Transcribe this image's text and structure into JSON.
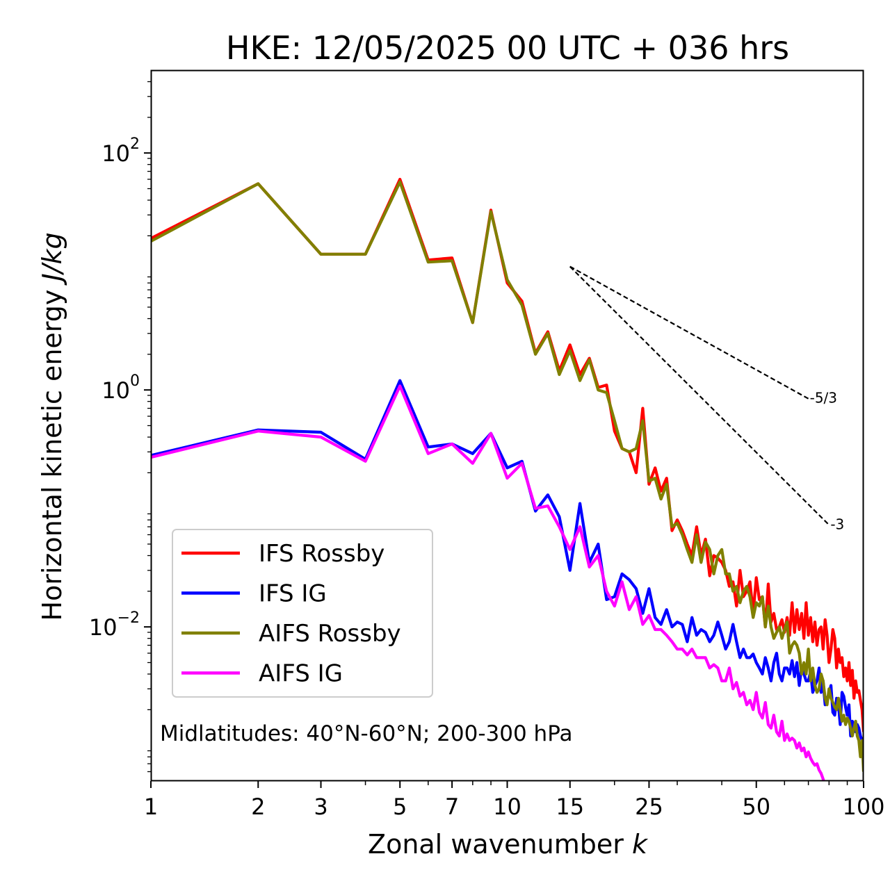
{
  "chart_data": {
    "type": "line",
    "title": "HKE: 12/05/2025 00 UTC + 036 hrs",
    "xlabel": "Zonal wavenumber",
    "xlabel_var": "k",
    "ylabel": "Horizontal kinetic energy",
    "ylabel_unit": "J/kg",
    "x_scale": "log",
    "y_scale": "log",
    "xlim": [
      1,
      100
    ],
    "ylim": [
      0.0005,
      500
    ],
    "xticks": [
      1,
      2,
      3,
      5,
      7,
      10,
      15,
      25,
      50,
      100
    ],
    "xtick_labels": [
      "1",
      "2",
      "3",
      "5",
      "7",
      "10",
      "15",
      "25",
      "50",
      "100"
    ],
    "yticks": [
      {
        "value": 0.01,
        "base": "10",
        "exp": "−2"
      },
      {
        "value": 1,
        "base": "10",
        "exp": "0"
      },
      {
        "value": 100,
        "base": "10",
        "exp": "2"
      }
    ],
    "annotation": "Midlatitudes: 40°N-60°N; 200-300 hPa",
    "legend_position": "lower-left",
    "reference_slopes": [
      {
        "label": "-5/3",
        "slope": -1.6667,
        "x0": 15,
        "y0": 11.0,
        "x1": 70
      },
      {
        "label": "-3",
        "slope": -3,
        "x0": 15,
        "y0": 11.0,
        "x1": 80
      }
    ],
    "series": [
      {
        "name": "IFS Rossby",
        "color": "#ff0000",
        "x": [
          1,
          2,
          3,
          4,
          5,
          6,
          7,
          8,
          9,
          10,
          11,
          12,
          13,
          14,
          15,
          16,
          17,
          18,
          19,
          20,
          21,
          22,
          23,
          24,
          25,
          26,
          27,
          28,
          29,
          30,
          31,
          32,
          33,
          34,
          35,
          36,
          37,
          38,
          39,
          40,
          41,
          42,
          43,
          44,
          45,
          46,
          47,
          48,
          49,
          50,
          51,
          52,
          53,
          54,
          55,
          56,
          57,
          58,
          59,
          60,
          61,
          62,
          63,
          64,
          65,
          66,
          67,
          68,
          69,
          70,
          71,
          72,
          73,
          74,
          75,
          76,
          77,
          78,
          79,
          80,
          81,
          82,
          83,
          84,
          85,
          86,
          87,
          88,
          89,
          90,
          91,
          92,
          93,
          94,
          95,
          96,
          97,
          98,
          99,
          100
        ],
        "y": [
          19.0,
          55.0,
          14.0,
          14.0,
          60.0,
          12.5,
          13.0,
          3.7,
          33.0,
          8.0,
          5.6,
          2.05,
          3.1,
          1.45,
          2.4,
          1.35,
          1.85,
          1.05,
          1.1,
          0.45,
          0.32,
          0.3,
          0.2,
          0.7,
          0.16,
          0.22,
          0.14,
          0.18,
          0.065,
          0.08,
          0.065,
          0.05,
          0.04,
          0.07,
          0.04,
          0.055,
          0.027,
          0.04,
          0.038,
          0.035,
          0.03,
          0.022,
          0.024,
          0.015,
          0.03,
          0.018,
          0.02,
          0.024,
          0.013,
          0.026,
          0.017,
          0.018,
          0.01,
          0.023,
          0.011,
          0.013,
          0.0095,
          0.01,
          0.0115,
          0.009,
          0.012,
          0.0085,
          0.016,
          0.009,
          0.014,
          0.0095,
          0.013,
          0.008,
          0.016,
          0.0085,
          0.012,
          0.0075,
          0.011,
          0.007,
          0.0095,
          0.01,
          0.0065,
          0.0115,
          0.0085,
          0.005,
          0.0065,
          0.0095,
          0.008,
          0.0045,
          0.0065,
          0.005,
          0.0055,
          0.0038,
          0.0045,
          0.0035,
          0.005,
          0.0032,
          0.0043,
          0.0025,
          0.0035,
          0.0028,
          0.0029,
          0.0024,
          0.002,
          0.0013
        ]
      },
      {
        "name": "IFS IG",
        "color": "#0000ff",
        "x": [
          1,
          2,
          3,
          4,
          5,
          6,
          7,
          8,
          9,
          10,
          11,
          12,
          13,
          14,
          15,
          16,
          17,
          18,
          19,
          20,
          21,
          22,
          23,
          24,
          25,
          26,
          27,
          28,
          29,
          30,
          31,
          32,
          33,
          34,
          35,
          36,
          37,
          38,
          39,
          40,
          41,
          42,
          43,
          44,
          45,
          46,
          47,
          48,
          49,
          50,
          51,
          52,
          53,
          54,
          55,
          56,
          57,
          58,
          59,
          60,
          61,
          62,
          63,
          64,
          65,
          66,
          67,
          68,
          69,
          70,
          71,
          72,
          73,
          74,
          75,
          76,
          77,
          78,
          79,
          80,
          81,
          82,
          83,
          84,
          85,
          86,
          87,
          88,
          89,
          90,
          91,
          92,
          93,
          94,
          95,
          96,
          97,
          98,
          99,
          100
        ],
        "y": [
          0.28,
          0.46,
          0.44,
          0.26,
          1.2,
          0.33,
          0.35,
          0.29,
          0.43,
          0.22,
          0.25,
          0.095,
          0.13,
          0.085,
          0.03,
          0.11,
          0.035,
          0.05,
          0.017,
          0.018,
          0.028,
          0.025,
          0.021,
          0.013,
          0.021,
          0.012,
          0.0105,
          0.014,
          0.01,
          0.011,
          0.0105,
          0.0075,
          0.012,
          0.0085,
          0.0095,
          0.009,
          0.0075,
          0.0085,
          0.011,
          0.0085,
          0.0065,
          0.0075,
          0.0105,
          0.0075,
          0.0055,
          0.0065,
          0.0055,
          0.0055,
          0.0059,
          0.005,
          0.0045,
          0.004,
          0.0055,
          0.0045,
          0.0035,
          0.005,
          0.006,
          0.004,
          0.0035,
          0.0045,
          0.0045,
          0.004,
          0.0052,
          0.0038,
          0.005,
          0.0032,
          0.0045,
          0.004,
          0.0035,
          0.0035,
          0.0042,
          0.0028,
          0.0032,
          0.0035,
          0.0045,
          0.0028,
          0.0035,
          0.0022,
          0.0025,
          0.0027,
          0.0032,
          0.0019,
          0.0018,
          0.0025,
          0.0022,
          0.0015,
          0.0028,
          0.0026,
          0.0021,
          0.0018,
          0.0022,
          0.0012,
          0.0016,
          0.0015,
          0.0013,
          0.0015,
          0.0014,
          0.0012,
          0.0011,
          0.001
        ]
      },
      {
        "name": "AIFS Rossby",
        "color": "#808000",
        "x": [
          1,
          2,
          3,
          4,
          5,
          6,
          7,
          8,
          9,
          10,
          11,
          12,
          13,
          14,
          15,
          16,
          17,
          18,
          19,
          20,
          21,
          22,
          23,
          24,
          25,
          26,
          27,
          28,
          29,
          30,
          31,
          32,
          33,
          34,
          35,
          36,
          37,
          38,
          39,
          40,
          41,
          42,
          43,
          44,
          45,
          46,
          47,
          48,
          49,
          50,
          51,
          52,
          53,
          54,
          55,
          56,
          57,
          58,
          59,
          60,
          61,
          62,
          63,
          64,
          65,
          66,
          67,
          68,
          69,
          70,
          71,
          72,
          73,
          74,
          75,
          76,
          77,
          78,
          79,
          80,
          81,
          82,
          83,
          84,
          85,
          86,
          87,
          88,
          89,
          90,
          91,
          92,
          93,
          94,
          95,
          96,
          97,
          98,
          99,
          100
        ],
        "y": [
          18.0,
          55.0,
          14.0,
          14.0,
          57.0,
          12.0,
          12.3,
          3.7,
          32.0,
          8.5,
          5.2,
          2.0,
          3.0,
          1.35,
          2.15,
          1.2,
          1.8,
          1.0,
          0.95,
          0.55,
          0.32,
          0.3,
          0.32,
          0.55,
          0.17,
          0.18,
          0.12,
          0.16,
          0.07,
          0.075,
          0.06,
          0.045,
          0.035,
          0.06,
          0.035,
          0.052,
          0.045,
          0.028,
          0.04,
          0.045,
          0.028,
          0.028,
          0.02,
          0.022,
          0.016,
          0.02,
          0.022,
          0.018,
          0.012,
          0.016,
          0.015,
          0.018,
          0.01,
          0.015,
          0.01,
          0.008,
          0.009,
          0.01,
          0.008,
          0.0095,
          0.011,
          0.006,
          0.007,
          0.0075,
          0.007,
          0.006,
          0.004,
          0.005,
          0.004,
          0.0065,
          0.0035,
          0.0045,
          0.0032,
          0.0028,
          0.003,
          0.004,
          0.0035,
          0.0025,
          0.0022,
          0.003,
          0.0025,
          0.0023,
          0.0021,
          0.002,
          0.0025,
          0.002,
          0.0016,
          0.0018,
          0.0015,
          0.0017,
          0.0016,
          0.0014,
          0.0012,
          0.0014,
          0.0016,
          0.0012,
          0.0011,
          0.0008,
          0.0011,
          0.0006
        ]
      },
      {
        "name": "AIFS IG",
        "color": "#ff00ff",
        "x": [
          1,
          2,
          3,
          4,
          5,
          6,
          7,
          8,
          9,
          10,
          11,
          12,
          13,
          14,
          15,
          16,
          17,
          18,
          19,
          20,
          21,
          22,
          23,
          24,
          25,
          26,
          27,
          28,
          29,
          30,
          31,
          32,
          33,
          34,
          35,
          36,
          37,
          38,
          39,
          40,
          41,
          42,
          43,
          44,
          45,
          46,
          47,
          48,
          49,
          50,
          51,
          52,
          53,
          54,
          55,
          56,
          57,
          58,
          59,
          60,
          61,
          62,
          63,
          64,
          65,
          66,
          67,
          68,
          69,
          70,
          71,
          72,
          73,
          74,
          75,
          76,
          77,
          78
        ],
        "y": [
          0.27,
          0.45,
          0.4,
          0.25,
          1.08,
          0.29,
          0.35,
          0.24,
          0.43,
          0.18,
          0.24,
          0.1,
          0.105,
          0.07,
          0.045,
          0.07,
          0.032,
          0.04,
          0.02,
          0.015,
          0.024,
          0.014,
          0.018,
          0.0105,
          0.0125,
          0.0095,
          0.0095,
          0.0085,
          0.0075,
          0.0065,
          0.0065,
          0.0058,
          0.0065,
          0.0055,
          0.0055,
          0.0055,
          0.0045,
          0.0048,
          0.0045,
          0.0035,
          0.0035,
          0.0045,
          0.003,
          0.0034,
          0.0026,
          0.0028,
          0.0022,
          0.0024,
          0.002,
          0.0028,
          0.0019,
          0.0017,
          0.0023,
          0.0015,
          0.0014,
          0.0018,
          0.0013,
          0.0012,
          0.0016,
          0.0011,
          0.00125,
          0.0011,
          0.00115,
          0.0011,
          0.00095,
          0.00105,
          0.0009,
          0.00095,
          0.0008,
          0.00088,
          0.00078,
          0.00072,
          0.00068,
          0.0007,
          0.00062,
          0.00058,
          0.00052,
          0.00045
        ]
      }
    ]
  }
}
